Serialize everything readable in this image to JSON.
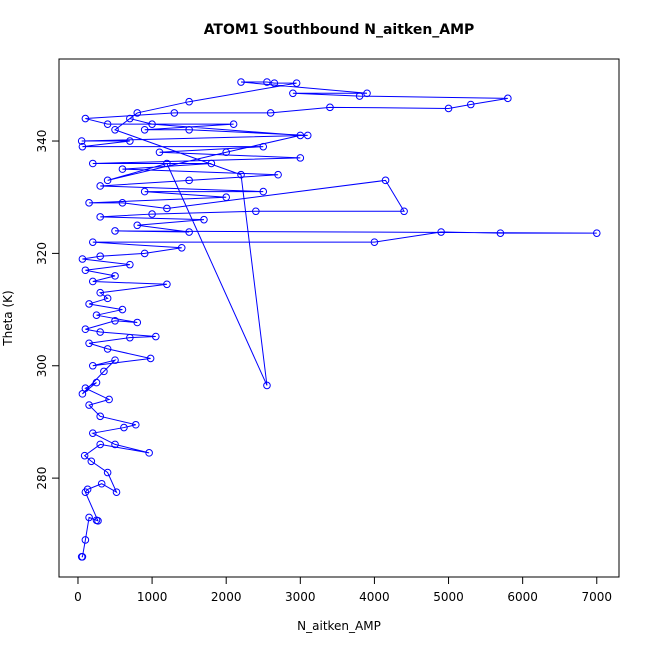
{
  "chart_data": {
    "type": "line",
    "title": "ATOM1 Southbound N_aitken_AMP",
    "xlabel": "N_aitken_AMP",
    "ylabel": "Theta (K)",
    "x": [
      50,
      60,
      100,
      150,
      250,
      270,
      100,
      130,
      320,
      520,
      400,
      180,
      90,
      300,
      960,
      500,
      200,
      620,
      780,
      300,
      150,
      420,
      100,
      250,
      60,
      350,
      500,
      200,
      980,
      400,
      150,
      700,
      1050,
      300,
      100,
      500,
      800,
      250,
      600,
      150,
      400,
      300,
      1200,
      200,
      500,
      100,
      700,
      60,
      300,
      900,
      1400,
      200,
      4000,
      4900,
      5700,
      7000,
      500,
      1500,
      800,
      1700,
      300,
      1000,
      2400,
      4400,
      4150,
      1200,
      600,
      150,
      2000,
      900,
      2500,
      300,
      1500,
      2700,
      600,
      1800,
      200,
      3000,
      1100,
      2500,
      60,
      700,
      50,
      3100,
      1500,
      900,
      2100,
      400,
      100,
      1300,
      2600,
      3400,
      5000,
      5300,
      5800,
      3800,
      2900,
      3900,
      2200,
      2550,
      2650,
      2950,
      1500,
      800,
      500,
      2200,
      2550,
      1200,
      400,
      2000,
      3000,
      1000,
      700
    ],
    "series": [
      {
        "color": "#0000ff",
        "values": [
          266,
          266,
          269,
          273,
          272.5,
          272.4,
          277.5,
          278,
          279,
          277.5,
          281,
          283,
          284,
          286,
          284.5,
          286,
          288,
          289,
          289.5,
          291,
          293,
          294,
          296,
          297,
          295,
          299,
          301,
          300,
          301.3,
          303,
          304,
          305,
          305.2,
          306,
          306.5,
          308,
          307.7,
          309,
          310,
          311,
          312,
          313,
          314.5,
          315,
          316,
          317,
          318,
          319,
          319.5,
          320,
          321,
          322,
          322,
          323.8,
          323.6,
          323.6,
          324,
          323.8,
          325,
          326,
          326.5,
          327,
          327.5,
          327.5,
          333,
          328,
          329,
          329,
          330,
          331,
          331,
          332,
          333,
          334,
          335,
          336,
          336,
          337,
          338,
          339,
          339,
          340,
          340,
          341,
          342,
          342,
          343,
          343,
          344,
          345,
          345,
          346,
          345.8,
          346.5,
          347.6,
          348,
          348.5,
          348.5,
          350.5,
          350.5,
          350.3,
          350.3,
          347,
          345,
          342,
          334,
          296.5,
          336,
          333,
          338,
          341,
          343,
          344
        ]
      }
    ],
    "xlim": [
      -256,
      7300
    ],
    "ylim": [
      262.4,
      354.6
    ],
    "xticks": [
      0,
      1000,
      2000,
      3000,
      4000,
      5000,
      6000,
      7000
    ],
    "yticks": [
      280,
      300,
      320,
      340
    ]
  }
}
